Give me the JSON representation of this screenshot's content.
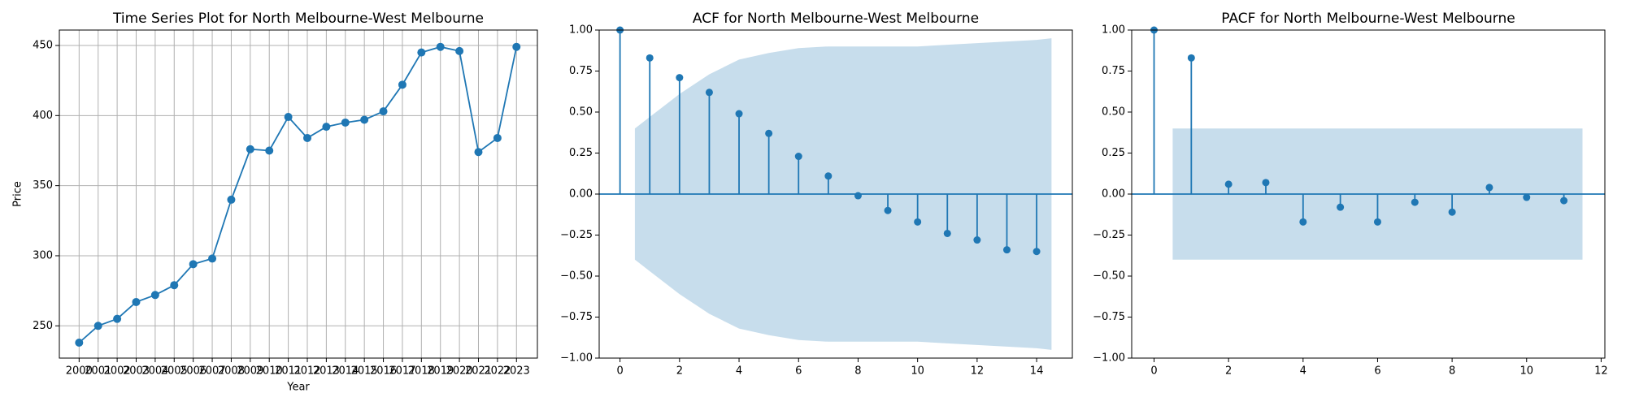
{
  "chart_data": [
    {
      "type": "line",
      "title": "Time Series Plot for North Melbourne-West Melbourne",
      "x_label": "Year",
      "y_label": "Price",
      "x": [
        2000,
        2001,
        2002,
        2003,
        2004,
        2005,
        2006,
        2007,
        2008,
        2009,
        2010,
        2011,
        2012,
        2013,
        2014,
        2015,
        2016,
        2017,
        2018,
        2019,
        2020,
        2021,
        2022,
        2023
      ],
      "values": [
        238,
        250,
        255,
        267,
        272,
        279,
        294,
        298,
        340,
        376,
        375,
        399,
        384,
        392,
        395,
        397,
        403,
        422,
        445,
        449,
        446,
        374,
        384,
        449
      ],
      "color": "#1f77b4",
      "grid": true,
      "xlim": [
        1998.96,
        2024.1
      ],
      "xticks": [
        2000,
        2001,
        2002,
        2003,
        2004,
        2005,
        2006,
        2007,
        2008,
        2009,
        2010,
        2011,
        2012,
        2013,
        2014,
        2015,
        2016,
        2017,
        2018,
        2019,
        2020,
        2021,
        2022,
        2023
      ],
      "ylim": [
        227,
        461
      ],
      "yticks": [
        250,
        300,
        350,
        400,
        450
      ]
    },
    {
      "type": "stem",
      "title": "ACF for North Melbourne-West Melbourne",
      "x": [
        0,
        1,
        2,
        3,
        4,
        5,
        6,
        7,
        8,
        9,
        10,
        11,
        12,
        13,
        14
      ],
      "values": [
        1,
        0.83,
        0.71,
        0.62,
        0.49,
        0.37,
        0.23,
        0.11,
        -0.01,
        -0.1,
        -0.17,
        -0.24,
        -0.28,
        -0.34,
        -0.35
      ],
      "color": "#1f77b4",
      "band_x": [
        0.5,
        1,
        2,
        3,
        4,
        5,
        6,
        7,
        8,
        9,
        10,
        11,
        12,
        13,
        14,
        14.5
      ],
      "band_upper": [
        0.4,
        0.47,
        0.61,
        0.73,
        0.82,
        0.86,
        0.89,
        0.9,
        0.9,
        0.9,
        0.9,
        0.91,
        0.92,
        0.93,
        0.94,
        0.95
      ],
      "band_lower": [
        -0.4,
        -0.47,
        -0.61,
        -0.73,
        -0.82,
        -0.86,
        -0.89,
        -0.9,
        -0.9,
        -0.9,
        -0.9,
        -0.91,
        -0.92,
        -0.93,
        -0.94,
        -0.95
      ],
      "xlim": [
        -0.7,
        15.2
      ],
      "xticks": [
        0,
        2,
        4,
        6,
        8,
        10,
        12,
        14
      ],
      "ylim": [
        -1,
        1
      ],
      "yticks": [
        {
          "value": -1,
          "label": "−1.00"
        },
        {
          "value": -0.75,
          "label": "−0.75"
        },
        {
          "value": -0.5,
          "label": "−0.50"
        },
        {
          "value": -0.25,
          "label": "−0.25"
        },
        {
          "value": 0,
          "label": "0.00"
        },
        {
          "value": 0.25,
          "label": "0.25"
        },
        {
          "value": 0.5,
          "label": "0.50"
        },
        {
          "value": 0.75,
          "label": "0.75"
        },
        {
          "value": 1,
          "label": "1.00"
        }
      ]
    },
    {
      "type": "stem",
      "title": "PACF for North Melbourne-West Melbourne",
      "x": [
        0,
        1,
        2,
        3,
        4,
        5,
        6,
        7,
        8,
        9,
        10,
        11
      ],
      "values": [
        1,
        0.83,
        0.06,
        0.07,
        -0.17,
        -0.08,
        -0.17,
        -0.05,
        -0.11,
        0.04,
        -0.02,
        -0.04
      ],
      "color": "#1f77b4",
      "band_x": [
        0.5,
        11.5
      ],
      "band_upper": [
        0.4,
        0.4
      ],
      "band_lower": [
        -0.4,
        -0.4
      ],
      "xlim": [
        -0.6,
        12.1
      ],
      "xticks": [
        0,
        2,
        4,
        6,
        8,
        10,
        12
      ],
      "ylim": [
        -1,
        1
      ],
      "yticks": [
        {
          "value": -1,
          "label": "−1.00"
        },
        {
          "value": -0.75,
          "label": "−0.75"
        },
        {
          "value": -0.5,
          "label": "−0.50"
        },
        {
          "value": -0.25,
          "label": "−0.25"
        },
        {
          "value": 0,
          "label": "0.00"
        },
        {
          "value": 0.25,
          "label": "0.25"
        },
        {
          "value": 0.5,
          "label": "0.50"
        },
        {
          "value": 0.75,
          "label": "0.75"
        },
        {
          "value": 1,
          "label": "1.00"
        }
      ]
    }
  ]
}
